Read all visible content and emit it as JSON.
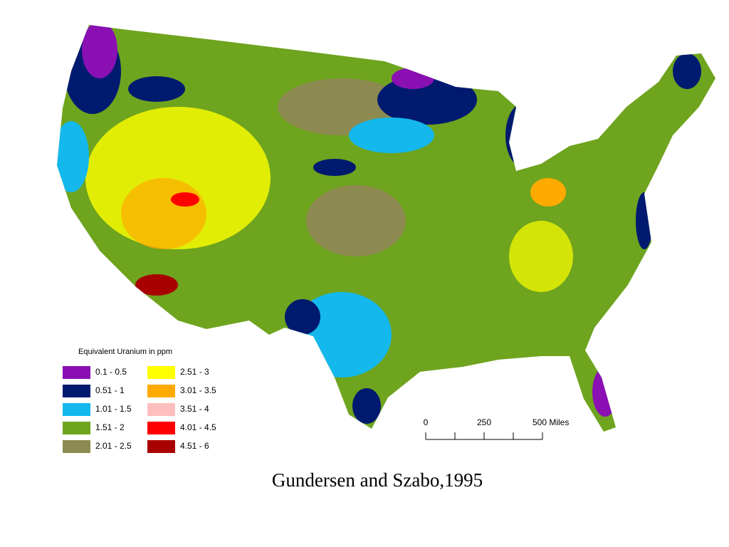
{
  "legend": {
    "title": "Equivalent Uranium in ppm",
    "items": [
      {
        "label": "0.1 - 0.5",
        "color": "#8a10b4"
      },
      {
        "label": "0.51 - 1",
        "color": "#001a70"
      },
      {
        "label": "1.01 - 1.5",
        "color": "#14b8ec"
      },
      {
        "label": "1.51 - 2",
        "color": "#6ea41e"
      },
      {
        "label": "2.01 - 2.5",
        "color": "#8c8a50"
      },
      {
        "label": "2.51 - 3",
        "color": "#ffff00"
      },
      {
        "label": "3.01 - 3.5",
        "color": "#ffaa00"
      },
      {
        "label": "3.51 - 4",
        "color": "#ffbebe"
      },
      {
        "label": "4.01 - 4.5",
        "color": "#ff0000"
      },
      {
        "label": "4.51 - 6",
        "color": "#a80000"
      }
    ]
  },
  "scale_bar": {
    "labels": [
      "0",
      "250",
      "500 Miles"
    ]
  },
  "caption": "Gundersen and Szabo,1995"
}
